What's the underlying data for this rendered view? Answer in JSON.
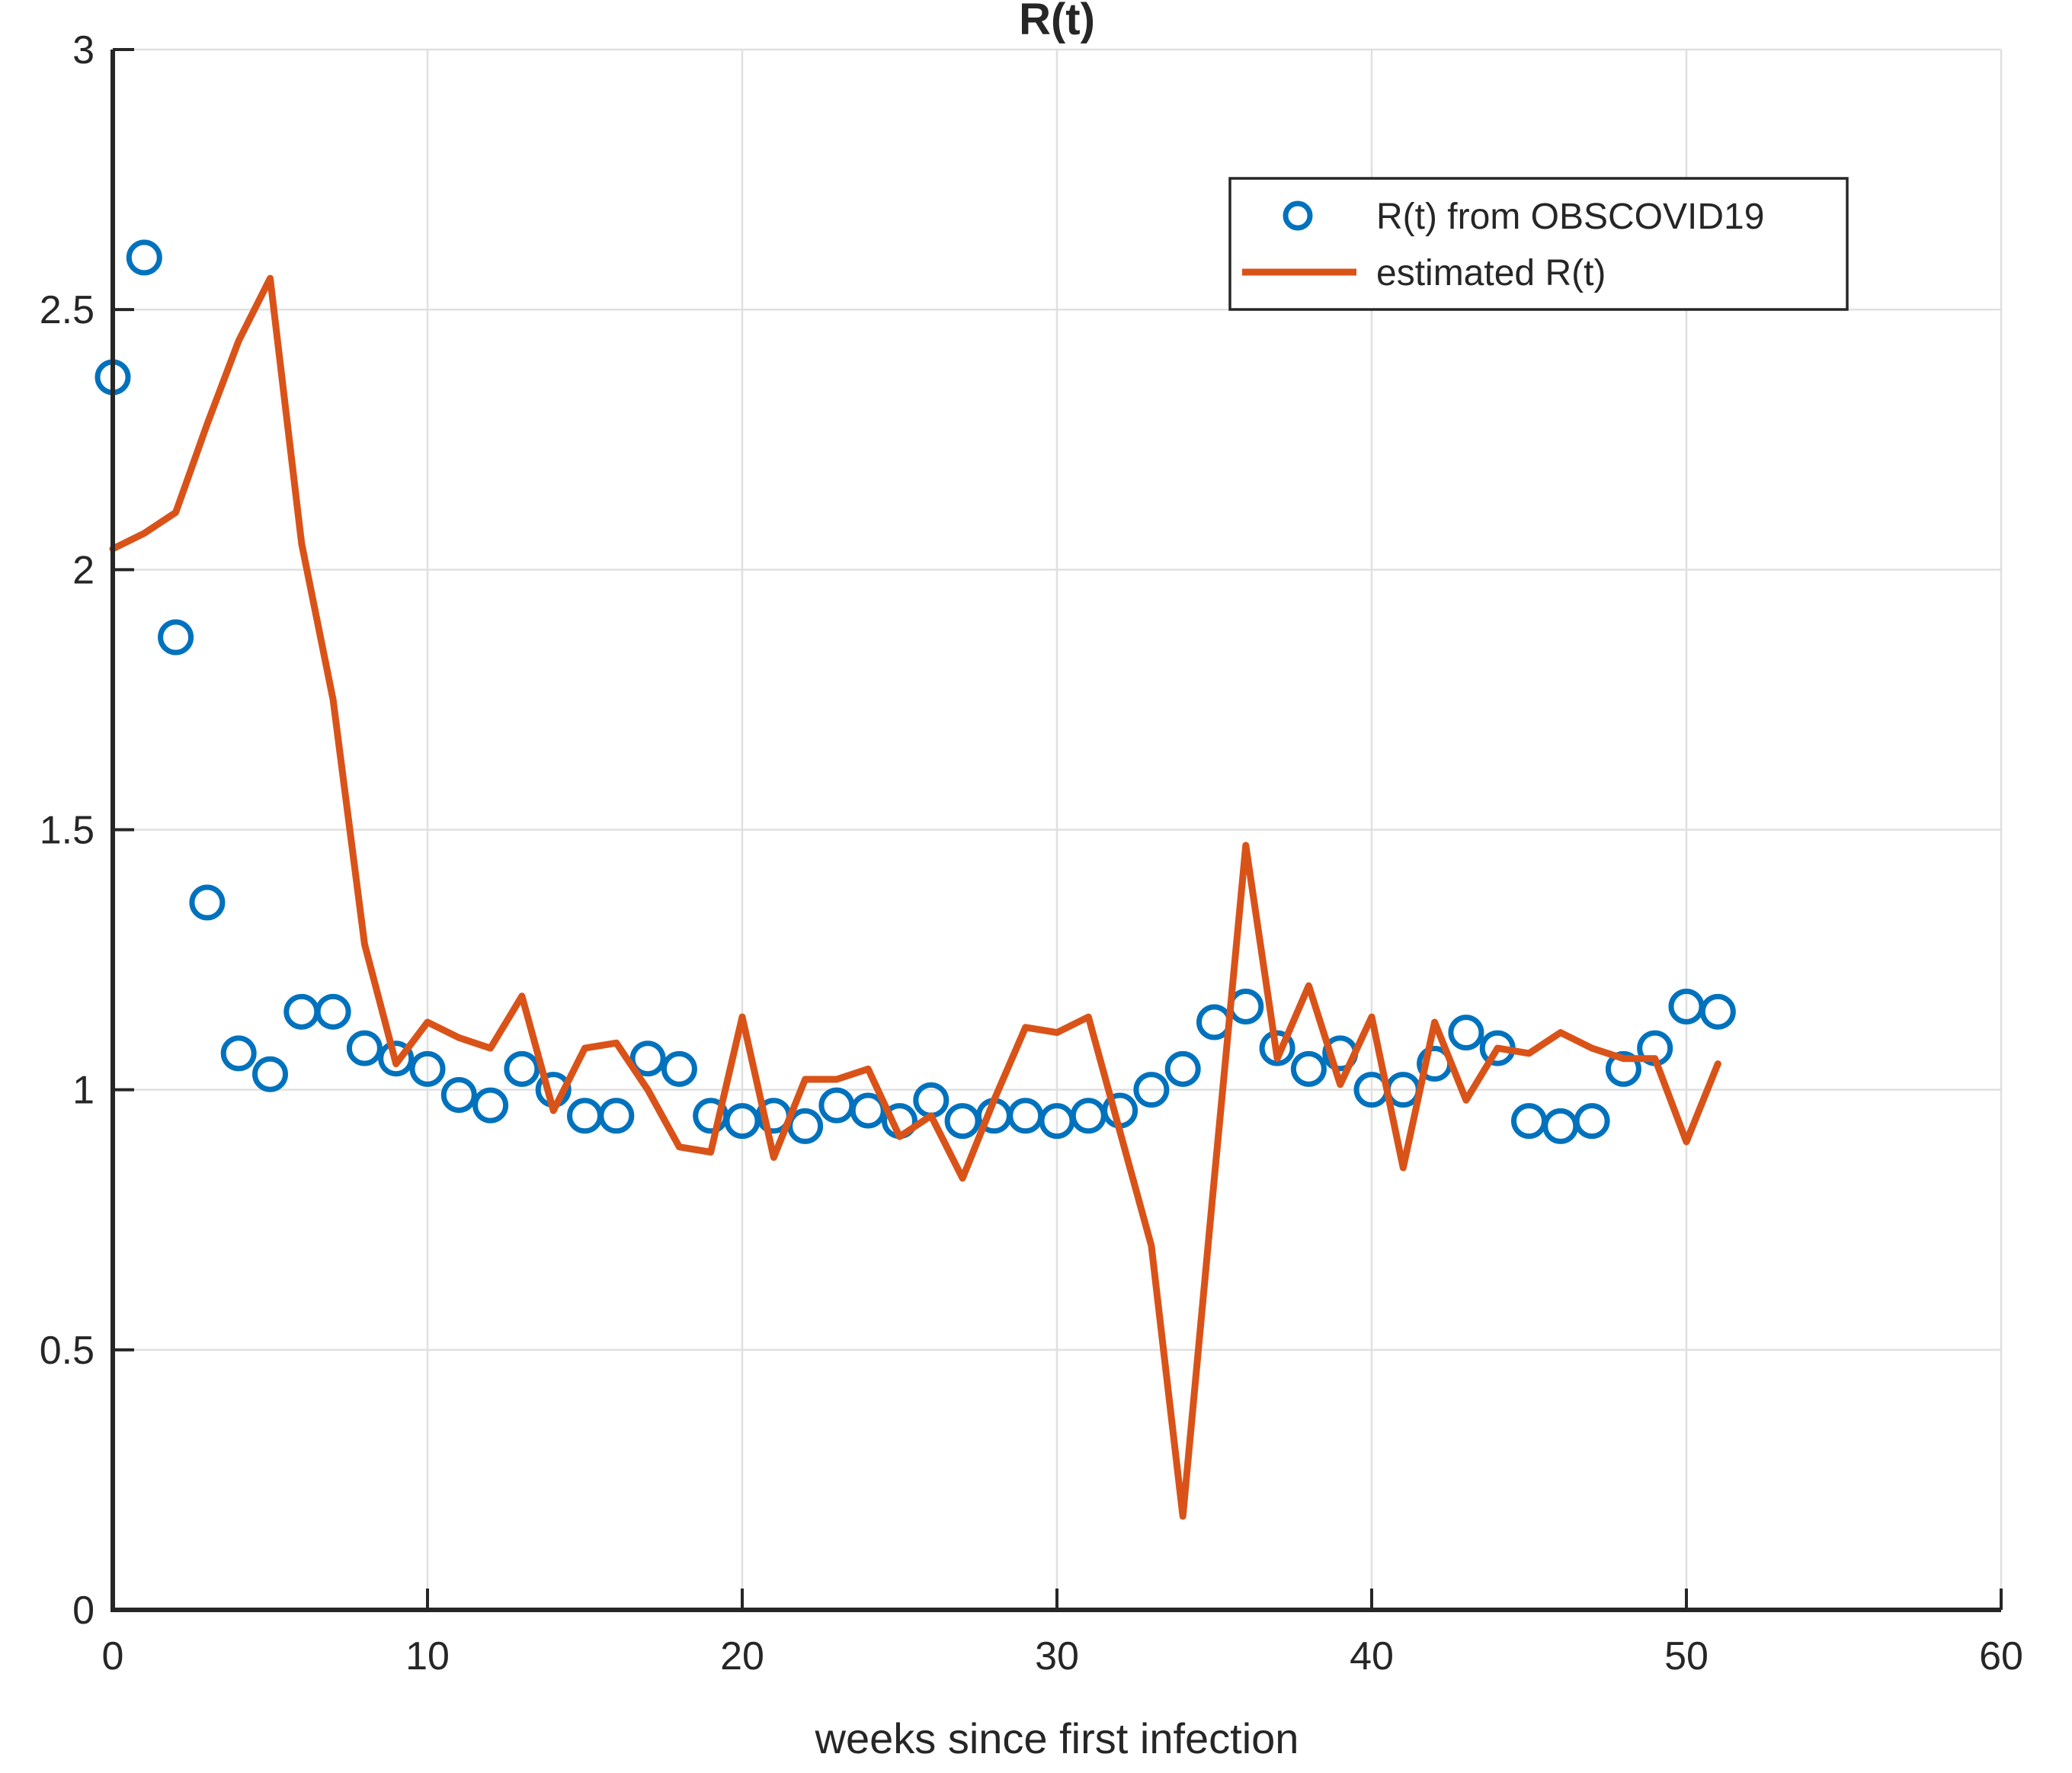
{
  "chart_data": {
    "type": "line",
    "title": "R(t)",
    "xlabel": "weeks since first infection",
    "ylabel": "",
    "xlim": [
      0,
      60
    ],
    "ylim": [
      0,
      3
    ],
    "x_ticks": [
      0,
      10,
      20,
      30,
      40,
      50,
      60
    ],
    "y_ticks": [
      0,
      0.5,
      1,
      1.5,
      2,
      2.5,
      3
    ],
    "grid": true,
    "legend_position": "upper right inside",
    "x": [
      0,
      1,
      2,
      3,
      4,
      5,
      6,
      7,
      8,
      9,
      10,
      11,
      12,
      13,
      14,
      15,
      16,
      17,
      18,
      19,
      20,
      21,
      22,
      23,
      24,
      25,
      26,
      27,
      28,
      29,
      30,
      31,
      32,
      33,
      34,
      35,
      36,
      37,
      38,
      39,
      40,
      41,
      42,
      43,
      44,
      45,
      46,
      47,
      48,
      49,
      50,
      51
    ],
    "series": [
      {
        "name": "R(t) from OBSCOVID19",
        "style": "scatter-circles",
        "color": "#0072BD",
        "values": [
          2.37,
          2.6,
          1.87,
          1.36,
          1.07,
          1.03,
          1.15,
          1.15,
          1.08,
          1.06,
          1.04,
          0.99,
          0.97,
          1.04,
          1.0,
          0.95,
          0.95,
          1.06,
          1.04,
          0.95,
          0.94,
          0.95,
          0.93,
          0.97,
          0.96,
          0.94,
          0.98,
          0.94,
          0.95,
          0.95,
          0.94,
          0.95,
          0.96,
          1.0,
          1.04,
          1.13,
          1.16,
          1.08,
          1.04,
          1.07,
          1.0,
          1.0,
          1.05,
          1.11,
          1.08,
          0.94,
          0.93,
          0.94,
          1.04,
          1.08,
          1.16,
          1.15
        ]
      },
      {
        "name": "estimated R(t)",
        "style": "solid-line",
        "color": "#D95319",
        "values": [
          2.04,
          2.07,
          2.11,
          2.28,
          2.44,
          2.56,
          2.05,
          1.75,
          1.28,
          1.05,
          1.13,
          1.1,
          1.08,
          1.18,
          0.96,
          1.08,
          1.09,
          1.0,
          0.89,
          0.88,
          1.14,
          0.87,
          1.02,
          1.02,
          1.04,
          0.91,
          0.95,
          0.83,
          0.98,
          1.12,
          1.11,
          1.14,
          0.92,
          0.7,
          0.18,
          0.83,
          1.47,
          1.06,
          1.2,
          1.01,
          1.14,
          0.85,
          1.13,
          0.98,
          1.08,
          1.07,
          1.11,
          1.08,
          1.06,
          1.06,
          0.9,
          1.05
        ]
      }
    ]
  },
  "legend": {
    "items": [
      {
        "label": "R(t) from OBSCOVID19",
        "marker": "circle",
        "color": "#0072BD"
      },
      {
        "label": "estimated R(t)",
        "marker": "line",
        "color": "#D95319"
      }
    ]
  },
  "style": {
    "grid_color": "#E0E0E0",
    "axis_color": "#262626",
    "background": "#FFFFFF",
    "scatter_color": "#0072BD",
    "line_color": "#D95319"
  }
}
